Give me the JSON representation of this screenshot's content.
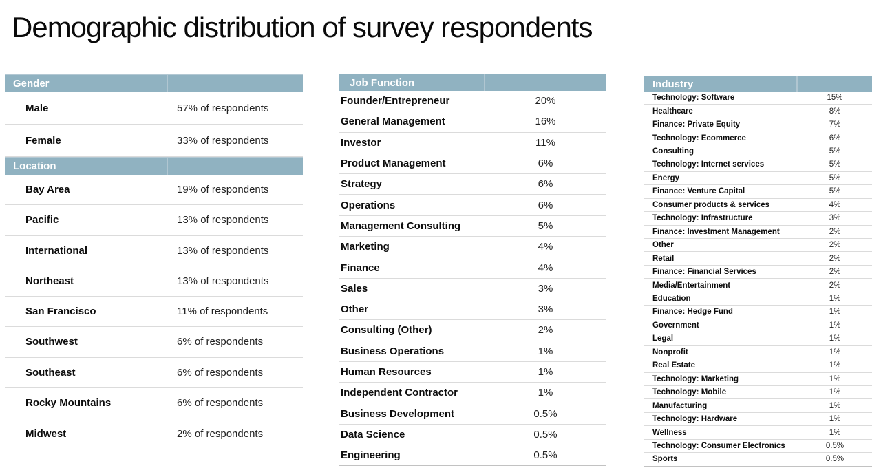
{
  "title": "Demographic distribution of survey respondents",
  "colors": {
    "header_bg": "#90b2c1",
    "header_text": "#ffffff",
    "row_divider": "#dbdbdb",
    "table_bottom_border": "#c2c2c2"
  },
  "gender_location_table": {
    "sections": [
      {
        "header": "Gender",
        "rows": [
          {
            "label": "Male",
            "value": "57% of respondents"
          },
          {
            "label": "Female",
            "value": "33% of respondents"
          }
        ]
      },
      {
        "header": "Location",
        "rows": [
          {
            "label": "Bay Area",
            "value": "19% of respondents"
          },
          {
            "label": "Pacific",
            "value": "13% of respondents"
          },
          {
            "label": "International",
            "value": "13% of respondents"
          },
          {
            "label": "Northeast",
            "value": "13% of respondents"
          },
          {
            "label": "San Francisco",
            "value": "11% of respondents"
          },
          {
            "label": "Southwest",
            "value": "6% of respondents"
          },
          {
            "label": "Southeast",
            "value": "6% of respondents"
          },
          {
            "label": "Rocky Mountains",
            "value": "6% of respondents"
          },
          {
            "label": "Midwest",
            "value": "2% of respondents"
          }
        ]
      }
    ]
  },
  "job_function_table": {
    "sections": [
      {
        "header": "Job Function",
        "rows": [
          {
            "label": "Founder/Entrepreneur",
            "value": "20%"
          },
          {
            "label": "General Management",
            "value": "16%"
          },
          {
            "label": "Investor",
            "value": "11%"
          },
          {
            "label": "Product Management",
            "value": "6%"
          },
          {
            "label": "Strategy",
            "value": "6%"
          },
          {
            "label": "Operations",
            "value": "6%"
          },
          {
            "label": "Management Consulting",
            "value": "5%"
          },
          {
            "label": "Marketing",
            "value": "4%"
          },
          {
            "label": "Finance",
            "value": "4%"
          },
          {
            "label": "Sales",
            "value": "3%"
          },
          {
            "label": "Other",
            "value": "3%"
          },
          {
            "label": "Consulting (Other)",
            "value": "2%"
          },
          {
            "label": "Business Operations",
            "value": "1%"
          },
          {
            "label": "Human Resources",
            "value": "1%"
          },
          {
            "label": "Independent Contractor",
            "value": "1%"
          },
          {
            "label": "Business Development",
            "value": "0.5%"
          },
          {
            "label": "Data Science",
            "value": "0.5%"
          },
          {
            "label": "Engineering",
            "value": "0.5%"
          }
        ]
      }
    ]
  },
  "industry_table": {
    "sections": [
      {
        "header": "Industry",
        "rows": [
          {
            "label": "Technology: Software",
            "value": "15%"
          },
          {
            "label": "Healthcare",
            "value": "8%"
          },
          {
            "label": "Finance: Private Equity",
            "value": "7%"
          },
          {
            "label": "Technology: Ecommerce",
            "value": "6%"
          },
          {
            "label": "Consulting",
            "value": "5%"
          },
          {
            "label": "Technology: Internet services",
            "value": "5%"
          },
          {
            "label": "Energy",
            "value": "5%"
          },
          {
            "label": "Finance: Venture Capital",
            "value": "5%"
          },
          {
            "label": "Consumer products & services",
            "value": "4%"
          },
          {
            "label": "Technology: Infrastructure",
            "value": "3%"
          },
          {
            "label": "Finance: Investment Management",
            "value": "2%"
          },
          {
            "label": "Other",
            "value": "2%"
          },
          {
            "label": "Retail",
            "value": "2%"
          },
          {
            "label": "Finance: Financial Services",
            "value": "2%"
          },
          {
            "label": "Media/Entertainment",
            "value": "2%"
          },
          {
            "label": "Education",
            "value": "1%"
          },
          {
            "label": "Finance: Hedge Fund",
            "value": "1%"
          },
          {
            "label": "Government",
            "value": "1%"
          },
          {
            "label": "Legal",
            "value": "1%"
          },
          {
            "label": "Nonprofit",
            "value": "1%"
          },
          {
            "label": "Real Estate",
            "value": "1%"
          },
          {
            "label": "Technology: Marketing",
            "value": "1%"
          },
          {
            "label": "Technology: Mobile",
            "value": "1%"
          },
          {
            "label": "Manufacturing",
            "value": "1%"
          },
          {
            "label": "Technology: Hardware",
            "value": "1%"
          },
          {
            "label": "Wellness",
            "value": "1%"
          },
          {
            "label": "Technology: Consumer Electronics",
            "value": "0.5%"
          },
          {
            "label": "Sports",
            "value": "0.5%"
          }
        ]
      }
    ]
  }
}
